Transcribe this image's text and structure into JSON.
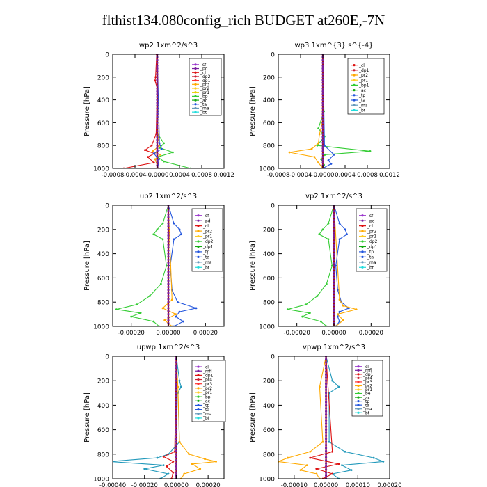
{
  "page_title": "flthist134.080config_rich  BUDGET at260E,-7N",
  "y_axis_label": "Pressure [hPa]",
  "chart_data": [
    {
      "id": "wp2",
      "type": "line",
      "title": "wp2   1xm^2/s^3",
      "ylabel": "Pressure [hPa]",
      "xlim": [
        -0.0008,
        0.0012
      ],
      "ylim": [
        1000,
        0
      ],
      "xticks": [
        -0.0008,
        -0.0004,
        0.0,
        0.0004,
        0.0008,
        0.0012
      ],
      "xtick_labels": [
        "-0.0008",
        "-0.0004",
        "-0.0000",
        "0.0004",
        "0.0008",
        "0.0012"
      ],
      "yticks": [
        0,
        200,
        400,
        600,
        800,
        1000
      ],
      "ytick_labels": [
        "0",
        "200",
        "400",
        "600",
        "800",
        "1000"
      ],
      "legend": [
        "_sf",
        "_pd",
        "_cl",
        "_dp2",
        "_dp1",
        "_pr3",
        "_pr2",
        "_pr1",
        "_bp",
        "_ac",
        "_ta",
        "_ma",
        "_bt"
      ],
      "legend_colors": [
        "#9933cc",
        "#7a1fa0",
        "#dd1111",
        "#cc2233",
        "#ff3333",
        "#ffaa00",
        "#ffcc22",
        "#e8d000",
        "#33cc33",
        "#11aa11",
        "#2255dd",
        "#6699bb",
        "#22dddd"
      ],
      "series": [
        {
          "color": "#33cc33",
          "pressure": [
            0,
            400,
            700,
            780,
            820,
            860,
            900,
            940,
            1000
          ],
          "values": [
            0,
            0,
            1e-05,
            0.00012,
            5e-05,
            0.00028,
            1e-05,
            0.00012,
            0.0006
          ]
        },
        {
          "color": "#dd1111",
          "pressure": [
            0,
            200,
            230,
            300,
            700,
            800,
            840,
            870,
            900,
            950,
            1000
          ],
          "values": [
            -1e-05,
            -3e-05,
            -4e-05,
            0,
            -2e-05,
            -0.0001,
            -0.00022,
            -5e-05,
            -0.00017,
            -6e-05,
            -0.0006
          ]
        },
        {
          "color": "#ffaa00",
          "pressure": [
            0,
            700,
            800,
            850,
            880,
            920,
            1000
          ],
          "values": [
            0,
            1e-05,
            4e-05,
            -8e-05,
            5e-05,
            -4e-05,
            2e-05
          ]
        },
        {
          "color": "#2255dd",
          "pressure": [
            0,
            780,
            830,
            870,
            920,
            1000
          ],
          "values": [
            0,
            4e-05,
            8e-05,
            -6e-05,
            3e-05,
            1e-05
          ]
        },
        {
          "color": "#7a1fa0",
          "pressure": [
            0,
            500,
            1000
          ],
          "values": [
            0,
            0,
            1e-05
          ]
        }
      ]
    },
    {
      "id": "wp3",
      "type": "line",
      "title": "wp3   1xm^{3} s^{-4}",
      "ylabel": "Pressure [hPa]",
      "xlim": [
        -0.0008,
        0.0012
      ],
      "ylim": [
        1000,
        0
      ],
      "xticks": [
        -0.0008,
        -0.0004,
        0.0,
        0.0004,
        0.0008,
        0.0012
      ],
      "xtick_labels": [
        "-0.0008",
        "-0.0004",
        "-0.0000",
        "0.0004",
        "0.0008",
        "0.0012"
      ],
      "yticks": [
        0,
        200,
        400,
        600,
        800,
        1000
      ],
      "ytick_labels": [
        "0",
        "200",
        "400",
        "600",
        "800",
        "1000"
      ],
      "legend": [
        "_cl",
        "_dp1",
        "_pr2",
        "_pr1",
        "_bp1",
        "_ac",
        "_tp",
        "_ta",
        "_ma",
        "_bt"
      ],
      "legend_colors": [
        "#dd1111",
        "#cc2233",
        "#ffaa00",
        "#ffcc22",
        "#33cc33",
        "#11aa11",
        "#2255dd",
        "#2255dd",
        "#6699bb",
        "#22dddd"
      ],
      "series": [
        {
          "color": "#33cc33",
          "pressure": [
            0,
            500,
            650,
            720,
            800,
            850,
            880,
            920,
            970,
            1000
          ],
          "values": [
            0,
            2e-05,
            -8e-05,
            3e-05,
            -0.0001,
            0.00085,
            4e-05,
            -3e-05,
            2e-05,
            0
          ]
        },
        {
          "color": "#ffaa00",
          "pressure": [
            0,
            600,
            700,
            780,
            830,
            860,
            900,
            950,
            1000
          ],
          "values": [
            0,
            -1e-05,
            -6e-05,
            -8e-05,
            -0.0002,
            -0.0006,
            -0.00015,
            -8e-05,
            0
          ]
        },
        {
          "color": "#2255dd",
          "pressure": [
            0,
            800,
            880,
            930,
            960,
            1000
          ],
          "values": [
            0,
            3e-05,
            0.0002,
            0.0001,
            0.00015,
            0
          ]
        },
        {
          "color": "#dd1111",
          "pressure": [
            0,
            1000
          ],
          "values": [
            0,
            0
          ]
        }
      ]
    },
    {
      "id": "up2",
      "type": "line",
      "title": "up2   1xm^2/s^3",
      "ylabel": "Pressure [hPa]",
      "xlim": [
        -0.0003,
        0.0003
      ],
      "ylim": [
        1000,
        0
      ],
      "xticks": [
        -0.0002,
        0.0,
        0.0002
      ],
      "xtick_labels": [
        "-0.00020",
        "0.00000",
        "0.00020"
      ],
      "yticks": [
        0,
        200,
        400,
        600,
        800,
        1000
      ],
      "ytick_labels": [
        "0",
        "200",
        "400",
        "600",
        "800",
        "1000"
      ],
      "legend": [
        "_sf",
        "_pd",
        "_cl",
        "_pr2",
        "_pr1",
        "_dp2",
        "_dp1",
        "_tp",
        "_ta",
        "_ma",
        "_bt"
      ],
      "legend_colors": [
        "#9933cc",
        "#7a1fa0",
        "#dd1111",
        "#ffaa00",
        "#ffcc22",
        "#33cc33",
        "#11aa11",
        "#2255dd",
        "#2255dd",
        "#6699bb",
        "#22dddd"
      ],
      "series": [
        {
          "color": "#33cc33",
          "pressure": [
            0,
            150,
            200,
            240,
            280,
            500,
            650,
            750,
            820,
            860,
            890,
            920,
            960,
            1000
          ],
          "values": [
            0,
            -3e-05,
            -6e-05,
            -8e-05,
            -3e-05,
            -1e-05,
            -4e-05,
            -0.0001,
            -0.00017,
            -0.00028,
            -0.00015,
            -0.0002,
            -8e-05,
            -5e-05
          ]
        },
        {
          "color": "#2255dd",
          "pressure": [
            0,
            150,
            200,
            240,
            280,
            500,
            700,
            800,
            850,
            880,
            920,
            960,
            1000
          ],
          "values": [
            0,
            3e-05,
            6e-05,
            7e-05,
            3e-05,
            1e-05,
            2e-05,
            5e-05,
            0.00015,
            6e-05,
            4e-05,
            8e-05,
            3e-05
          ]
        },
        {
          "color": "#ffaa00",
          "pressure": [
            0,
            780,
            850,
            900,
            950,
            1000
          ],
          "values": [
            0,
            2e-05,
            -3e-05,
            4e-05,
            -2e-05,
            2e-05
          ]
        },
        {
          "color": "#dd1111",
          "pressure": [
            0,
            1000
          ],
          "values": [
            0,
            0
          ]
        }
      ]
    },
    {
      "id": "vp2",
      "type": "line",
      "title": "vp2   1xm^2/s^3",
      "ylabel": "Pressure [hPa]",
      "xlim": [
        -0.0003,
        0.0003
      ],
      "ylim": [
        1000,
        0
      ],
      "xticks": [
        -0.0002,
        0.0,
        0.0002
      ],
      "xtick_labels": [
        "-0.00020",
        "0.00000",
        "0.00020"
      ],
      "yticks": [
        0,
        200,
        400,
        600,
        800,
        1000
      ],
      "ytick_labels": [
        "0",
        "200",
        "400",
        "600",
        "800",
        "1000"
      ],
      "legend": [
        "_sf",
        "_pd",
        "_cl",
        "_pr2",
        "_pr1",
        "_dp2",
        "_dp1",
        "_tp",
        "_ta",
        "_ma",
        "_bt"
      ],
      "legend_colors": [
        "#9933cc",
        "#7a1fa0",
        "#dd1111",
        "#ffaa00",
        "#ffcc22",
        "#33cc33",
        "#11aa11",
        "#2255dd",
        "#2255dd",
        "#6699bb",
        "#22dddd"
      ],
      "series": [
        {
          "color": "#33cc33",
          "pressure": [
            0,
            150,
            200,
            240,
            280,
            500,
            650,
            750,
            820,
            860,
            890,
            920,
            960,
            1000
          ],
          "values": [
            0,
            -3e-05,
            -6e-05,
            -8e-05,
            -3e-05,
            -1e-05,
            -4e-05,
            -9e-05,
            -0.00015,
            -0.00025,
            -0.00013,
            -0.00017,
            -7e-05,
            -4e-05
          ]
        },
        {
          "color": "#2255dd",
          "pressure": [
            0,
            150,
            200,
            240,
            280,
            500,
            700,
            800,
            850,
            880,
            920,
            960,
            1000
          ],
          "values": [
            0,
            3e-05,
            6e-05,
            7e-05,
            3e-05,
            1e-05,
            2e-05,
            4e-05,
            8e-05,
            3e-05,
            2e-05,
            3e-05,
            1e-05
          ]
        },
        {
          "color": "#ffaa00",
          "pressure": [
            0,
            780,
            830,
            860,
            900,
            950,
            1000
          ],
          "values": [
            0,
            3e-05,
            5e-05,
            0.00012,
            2e-05,
            5e-05,
            1e-05
          ]
        },
        {
          "color": "#dd1111",
          "pressure": [
            0,
            1000
          ],
          "values": [
            0,
            0
          ]
        }
      ]
    },
    {
      "id": "upwp",
      "type": "line",
      "title": "upwp   1xm^2/s^3",
      "ylabel": "Pressure [hPa]",
      "xlim": [
        -0.0004,
        0.0003
      ],
      "ylim": [
        1000,
        0
      ],
      "xticks": [
        -0.0004,
        -0.0002,
        0.0,
        0.0002
      ],
      "xtick_labels": [
        "-0.00040",
        "-0.00020",
        "0.00000",
        "0.00020"
      ],
      "yticks": [
        0,
        200,
        400,
        600,
        800,
        1000
      ],
      "ytick_labels": [
        "0",
        "200",
        "400",
        "600",
        "800",
        "1000"
      ],
      "legend": [
        "_cl",
        "_mfl",
        "_dp1",
        "_pr4",
        "_pr3",
        "_pr2",
        "_pr1",
        "_bp",
        "_ac",
        "_tp",
        "_ta",
        "_ma",
        "_bt"
      ],
      "legend_colors": [
        "#9933cc",
        "#7a1fa0",
        "#dd1111",
        "#cc2233",
        "#ff3333",
        "#ffaa00",
        "#ffcc22",
        "#33cc33",
        "#11aa11",
        "#2255dd",
        "#2255dd",
        "#6699bb",
        "#22dddd"
      ],
      "series": [
        {
          "color": "#2299bb",
          "pressure": [
            0,
            200,
            250,
            300,
            700,
            800,
            830,
            860,
            890,
            920,
            960,
            1000
          ],
          "values": [
            0,
            2e-05,
            3e-05,
            1e-05,
            2e-05,
            -5e-05,
            -0.00012,
            -0.00042,
            -8e-05,
            -0.0002,
            -5e-05,
            -0.0001
          ]
        },
        {
          "color": "#ffaa00",
          "pressure": [
            0,
            250,
            700,
            800,
            840,
            860,
            880,
            920,
            960,
            1000
          ],
          "values": [
            0,
            1e-05,
            2e-05,
            8e-05,
            0.00018,
            0.00025,
            0.0001,
            0.00015,
            5e-05,
            3e-05
          ]
        },
        {
          "color": "#dd1111",
          "pressure": [
            0,
            780,
            820,
            860,
            900,
            950,
            1000
          ],
          "values": [
            0,
            -1e-05,
            -8e-05,
            -2e-05,
            -6e-05,
            -2e-05,
            -3e-05
          ]
        },
        {
          "color": "#7a1fa0",
          "pressure": [
            0,
            1000
          ],
          "values": [
            0,
            0
          ]
        }
      ]
    },
    {
      "id": "vpwp",
      "type": "line",
      "title": "vpwp   1xm^2/s^3",
      "ylabel": "Pressure [hPa]",
      "xlim": [
        -0.00015,
        0.0002
      ],
      "ylim": [
        1000,
        0
      ],
      "xticks": [
        -0.0001,
        0.0,
        0.0001,
        0.0002
      ],
      "xtick_labels": [
        "-0.00010",
        "0.00000",
        "0.00010",
        "0.00020"
      ],
      "yticks": [
        0,
        200,
        400,
        600,
        800,
        1000
      ],
      "ytick_labels": [
        "0",
        "200",
        "400",
        "600",
        "800",
        "1000"
      ],
      "legend": [
        "_cl",
        "_mfl",
        "_dp1",
        "_pr4",
        "_pr3",
        "_pr2",
        "_pr1",
        "_be",
        "_ac",
        "_tp",
        "_ta",
        "_ma",
        "_bt"
      ],
      "legend_colors": [
        "#9933cc",
        "#7a1fa0",
        "#dd1111",
        "#cc2233",
        "#ff3333",
        "#ffaa00",
        "#ffcc22",
        "#33cc33",
        "#11aa11",
        "#2255dd",
        "#2255dd",
        "#6699bb",
        "#22dddd"
      ],
      "series": [
        {
          "color": "#2299bb",
          "pressure": [
            0,
            200,
            250,
            300,
            700,
            780,
            830,
            860,
            890,
            930,
            960,
            1000
          ],
          "values": [
            0,
            2e-05,
            4e-05,
            1e-05,
            1e-05,
            6e-05,
            0.00015,
            0.00018,
            5e-05,
            8e-05,
            2e-05,
            4e-05
          ]
        },
        {
          "color": "#ffaa00",
          "pressure": [
            0,
            250,
            700,
            780,
            830,
            860,
            890,
            930,
            960,
            1000
          ],
          "values": [
            0,
            -2e-05,
            -1e-05,
            -5e-05,
            -0.00012,
            -0.00015,
            -6e-05,
            -8e-05,
            -3e-05,
            -2e-05
          ]
        },
        {
          "color": "#dd1111",
          "pressure": [
            0,
            780,
            830,
            880,
            920,
            960,
            1000
          ],
          "values": [
            0,
            2e-05,
            -5e-05,
            4e-05,
            -3e-05,
            2e-05,
            -1e-05
          ]
        },
        {
          "color": "#7a1fa0",
          "pressure": [
            0,
            1000
          ],
          "values": [
            0,
            0
          ]
        }
      ]
    }
  ]
}
